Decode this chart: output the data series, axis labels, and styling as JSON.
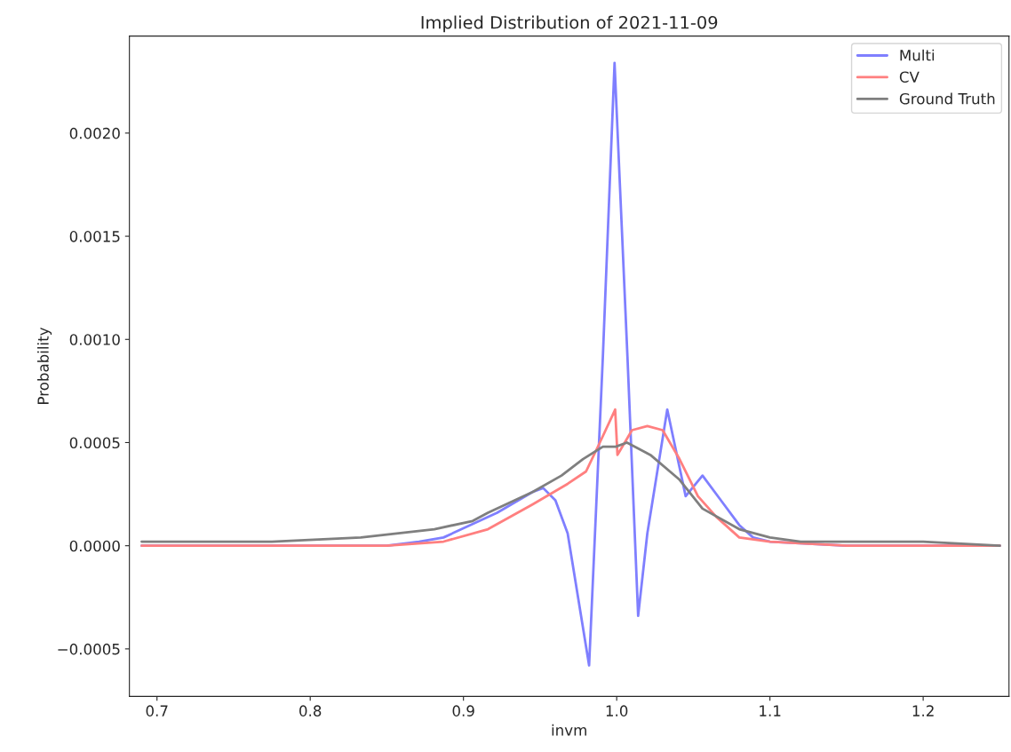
{
  "chart_data": {
    "type": "line",
    "title": "Implied Distribution of 2021-11-09",
    "xlabel": "invm",
    "ylabel": "Probability",
    "xlim": [
      0.682,
      1.256
    ],
    "ylim": [
      -0.00073,
      0.00247
    ],
    "xticks": [
      0.7,
      0.8,
      0.9,
      {
        "value": 1,
        "label": "1.0"
      },
      1.1,
      1.2
    ],
    "yticks": [
      {
        "value": -0.0005,
        "label": "−0.0005"
      },
      {
        "value": 0,
        "label": "0.0000"
      },
      {
        "value": 0.0005,
        "label": "0.0005"
      },
      {
        "value": 0.001,
        "label": "0.0010"
      },
      {
        "value": 0.0015,
        "label": "0.0015"
      },
      {
        "value": 0.002,
        "label": "0.0020"
      }
    ],
    "grid": false,
    "legend": "top right",
    "series": [
      {
        "name": "Multi",
        "color": "#7f7fff",
        "x": [
          0.69,
          0.8,
          0.85,
          0.871,
          0.887,
          0.922,
          0.945,
          0.952,
          0.96,
          0.968,
          0.982,
          0.991,
          0.9986,
          1.007,
          1.014,
          1.02,
          1.033,
          1.045,
          1.056,
          1.068,
          1.08,
          1.089,
          1.1,
          1.15,
          1.25
        ],
        "values": [
          0.0,
          0.0,
          0.0,
          2e-05,
          4e-05,
          0.00016,
          0.00026,
          0.00028,
          0.00022,
          6e-05,
          -0.00058,
          0.00092,
          0.00234,
          0.00092,
          -0.00034,
          6e-05,
          0.00066,
          0.00024,
          0.00034,
          0.00022,
          0.0001,
          4e-05,
          2e-05,
          0.0,
          0.0
        ]
      },
      {
        "name": "CV",
        "color": "#ff7f7f",
        "x": [
          0.69,
          0.8,
          0.85,
          0.887,
          0.916,
          0.945,
          0.968,
          0.98,
          0.989,
          0.999,
          1.0005,
          1.01,
          1.02,
          1.03,
          1.041,
          1.053,
          1.065,
          1.08,
          1.1,
          1.15,
          1.25
        ],
        "values": [
          0.0,
          0.0,
          0.0,
          2e-05,
          8e-05,
          0.0002,
          0.0003,
          0.00036,
          0.0005,
          0.00066,
          0.00044,
          0.00056,
          0.00058,
          0.00056,
          0.00042,
          0.00024,
          0.00014,
          4e-05,
          2e-05,
          0.0,
          0.0
        ]
      },
      {
        "name": "Ground Truth",
        "color": "#7f7f7f",
        "x": [
          0.69,
          0.775,
          0.833,
          0.881,
          0.906,
          0.916,
          0.945,
          0.964,
          0.978,
          0.991,
          0.9994,
          1.0067,
          1.022,
          1.041,
          1.056,
          1.08,
          1.1,
          1.12,
          1.15,
          1.2,
          1.25
        ],
        "values": [
          2e-05,
          2e-05,
          4e-05,
          8e-05,
          0.00012,
          0.00016,
          0.00026,
          0.00034,
          0.00042,
          0.00048,
          0.00048,
          0.0005,
          0.00044,
          0.00032,
          0.00018,
          8e-05,
          4e-05,
          2e-05,
          2e-05,
          2e-05,
          0.0
        ]
      }
    ]
  }
}
